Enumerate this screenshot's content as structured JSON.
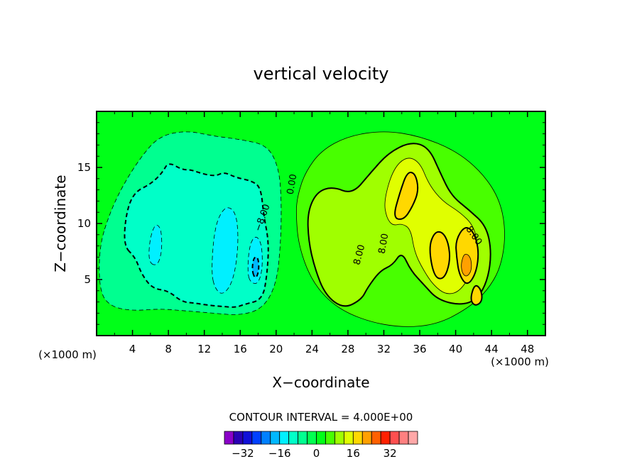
{
  "chart_data": {
    "type": "heatmap",
    "title": "vertical velocity",
    "xlabel": "X−coordinate",
    "ylabel": "Z−coordinate",
    "x_unit": "(×1000 m)",
    "y_unit": "(×1000 m)",
    "xlim": [
      0,
      50
    ],
    "ylim": [
      0,
      20
    ],
    "x_ticks": [
      4,
      8,
      12,
      16,
      20,
      24,
      28,
      32,
      36,
      40,
      44,
      48
    ],
    "y_ticks": [
      5,
      10,
      15
    ],
    "contour_interval_text": "CONTOUR INTERVAL = 4.000E+00",
    "contour_labels": [
      {
        "text": "0.00",
        "x": 21.8,
        "y": 13.5,
        "angle": -80
      },
      {
        "text": "−8.00",
        "x": 18.5,
        "y": 10.5,
        "angle": -70
      },
      {
        "text": "8.00",
        "x": 29.3,
        "y": 7.2,
        "angle": -75
      },
      {
        "text": "8.00",
        "x": 32.0,
        "y": 8.2,
        "angle": -80
      },
      {
        "text": "8.00",
        "x": 42.0,
        "y": 8.9,
        "angle": 55
      }
    ],
    "colorbar": {
      "levels": [
        -36,
        -32,
        -28,
        -24,
        -20,
        -16,
        -12,
        -8,
        -4,
        0,
        4,
        8,
        12,
        16,
        20,
        24,
        28,
        32,
        36
      ],
      "colors": [
        "#8a00c8",
        "#2a00b4",
        "#1010d8",
        "#0040ff",
        "#0080ff",
        "#00b8ff",
        "#00f0ff",
        "#00ffc8",
        "#00ff90",
        "#00ff50",
        "#00ff18",
        "#48ff00",
        "#a0ff00",
        "#e0ff00",
        "#ffd800",
        "#ffa000",
        "#ff6000",
        "#ff2000",
        "#ff5050",
        "#ff8080",
        "#ffa8a8"
      ],
      "tick_values": [
        -32,
        -16,
        0,
        16,
        32
      ],
      "tick_labels": [
        "−32",
        "−16",
        "0",
        "16",
        "32"
      ]
    },
    "field": {
      "background_level_color": "#00ff18",
      "features": [
        {
          "name": "updraft-region",
          "level": 4,
          "points": [
            [
              22.4,
              12.5
            ],
            [
              23.2,
              14.5
            ],
            [
              25,
              16.5
            ],
            [
              28,
              17.8
            ],
            [
              32,
              18.3
            ],
            [
              36,
              17.8
            ],
            [
              40,
              16.5
            ],
            [
              43,
              14.5
            ],
            [
              45,
              12
            ],
            [
              45.6,
              9
            ],
            [
              45,
              6
            ],
            [
              43.5,
              4
            ],
            [
              41.5,
              2.5
            ],
            [
              38,
              1
            ],
            [
              34,
              0.7
            ],
            [
              30,
              1.3
            ],
            [
              26.5,
              2.6
            ],
            [
              24,
              4.8
            ],
            [
              22.5,
              8
            ],
            [
              22.2,
              11
            ]
          ]
        },
        {
          "name": "updraft-8",
          "level": 8,
          "points": [
            [
              23.5,
              11
            ],
            [
              24.5,
              12.8
            ],
            [
              26.3,
              13.3
            ],
            [
              28.5,
              12.6
            ],
            [
              30.5,
              14.5
            ],
            [
              32.5,
              16.3
            ],
            [
              35,
              17.3
            ],
            [
              37,
              16.8
            ],
            [
              38.3,
              14.5
            ],
            [
              39.5,
              12.5
            ],
            [
              41.5,
              11.2
            ],
            [
              43.4,
              9.8
            ],
            [
              44,
              7.5
            ],
            [
              43.6,
              5
            ],
            [
              42.4,
              3.2
            ],
            [
              40.5,
              2.7
            ],
            [
              38,
              3.2
            ],
            [
              36.5,
              4.5
            ],
            [
              35,
              5.8
            ],
            [
              34,
              7.5
            ],
            [
              33,
              6.3
            ],
            [
              31.6,
              5.8
            ],
            [
              30.2,
              4.3
            ],
            [
              29.5,
              3.2
            ],
            [
              27.5,
              2.4
            ],
            [
              25.5,
              3.6
            ],
            [
              24.3,
              6
            ],
            [
              23.6,
              8.5
            ]
          ]
        },
        {
          "name": "updraft-12",
          "level": 12,
          "points": [
            [
              32,
              12
            ],
            [
              33,
              14.8
            ],
            [
              34.5,
              16
            ],
            [
              36,
              15.5
            ],
            [
              37,
              13.5
            ],
            [
              38.5,
              12
            ],
            [
              40.5,
              11
            ],
            [
              42,
              9.8
            ],
            [
              42.5,
              8
            ],
            [
              42,
              6
            ],
            [
              40.6,
              4
            ],
            [
              39,
              3.6
            ],
            [
              37.5,
              4.5
            ],
            [
              36.3,
              6
            ],
            [
              35.4,
              7.5
            ],
            [
              35,
              9.5
            ],
            [
              34,
              10
            ],
            [
              33,
              9.8
            ],
            [
              32.3,
              10.5
            ]
          ]
        },
        {
          "name": "updraft-16a",
          "level": 16,
          "points": [
            [
              33,
              10.5
            ],
            [
              33.8,
              12.8
            ],
            [
              34.6,
              14.6
            ],
            [
              35.5,
              14.5
            ],
            [
              35.9,
              13
            ],
            [
              35.2,
              11.5
            ],
            [
              34.2,
              10.3
            ]
          ]
        },
        {
          "name": "updraft-16b",
          "level": 16,
          "points": [
            [
              37,
              7.8
            ],
            [
              37.6,
              9.2
            ],
            [
              38.5,
              9.3
            ],
            [
              39.2,
              8.3
            ],
            [
              39.4,
              6.6
            ],
            [
              38.7,
              5
            ],
            [
              37.6,
              5.2
            ]
          ]
        },
        {
          "name": "updraft-16c",
          "level": 16,
          "points": [
            [
              40,
              8.5
            ],
            [
              41,
              9.8
            ],
            [
              42,
              9.3
            ],
            [
              42.6,
              7.6
            ],
            [
              42.3,
              5.6
            ],
            [
              41.3,
              4.4
            ],
            [
              40.4,
              5.4
            ],
            [
              40.1,
              7
            ]
          ]
        },
        {
          "name": "updraft-16d",
          "level": 16,
          "points": [
            [
              41.6,
              3.2
            ],
            [
              42.1,
              4.6
            ],
            [
              42.8,
              4.2
            ],
            [
              43,
              3.1
            ],
            [
              42.2,
              2.6
            ]
          ]
        },
        {
          "name": "updraft-20",
          "level": 20,
          "points": [
            [
              40.6,
              6.5
            ],
            [
              41,
              7.4
            ],
            [
              41.7,
              7
            ],
            [
              41.8,
              5.8
            ],
            [
              41.2,
              5.2
            ],
            [
              40.7,
              5.6
            ]
          ]
        },
        {
          "name": "downdraft-region",
          "level": -4,
          "points": [
            [
              1.5,
              11
            ],
            [
              3,
              13.5
            ],
            [
              5,
              16
            ],
            [
              7,
              17.8
            ],
            [
              10,
              18.3
            ],
            [
              13,
              17.8
            ],
            [
              16,
              17.5
            ],
            [
              19,
              17
            ],
            [
              20.3,
              15
            ],
            [
              20.6,
              12
            ],
            [
              20.5,
              8
            ],
            [
              20,
              4.5
            ],
            [
              18.5,
              2.4
            ],
            [
              16,
              1.8
            ],
            [
              13,
              2
            ],
            [
              10,
              2.2
            ],
            [
              7,
              2.4
            ],
            [
              4,
              2.2
            ],
            [
              1.5,
              2.6
            ],
            [
              0.3,
              4
            ],
            [
              0.3,
              8
            ]
          ]
        },
        {
          "name": "downdraft-8",
          "level": -8,
          "points": [
            [
              3,
              8
            ],
            [
              3.3,
              11
            ],
            [
              4.2,
              12.8
            ],
            [
              6,
              13.5
            ],
            [
              7.3,
              14.5
            ],
            [
              8,
              15.5
            ],
            [
              9.5,
              14.8
            ],
            [
              10.5,
              14.8
            ],
            [
              11.5,
              14.5
            ],
            [
              13.2,
              14.2
            ],
            [
              14.2,
              14.6
            ],
            [
              15.5,
              14.1
            ],
            [
              17.3,
              13.8
            ],
            [
              18.3,
              13.2
            ],
            [
              18.6,
              10.8
            ],
            [
              19.2,
              8.3
            ],
            [
              19,
              5.5
            ],
            [
              18.5,
              3.2
            ],
            [
              16.5,
              2.8
            ],
            [
              15.5,
              2.5
            ],
            [
              14,
              2.6
            ],
            [
              12.5,
              2.7
            ],
            [
              11,
              2.9
            ],
            [
              9.5,
              3
            ],
            [
              8,
              4
            ],
            [
              6.2,
              4.2
            ],
            [
              5,
              5.5
            ],
            [
              4.3,
              7
            ]
          ]
        },
        {
          "name": "downdraft-12a",
          "level": -12,
          "points": [
            [
              5.8,
              6.5
            ],
            [
              5.9,
              8.5
            ],
            [
              6.5,
              10
            ],
            [
              7.2,
              9.6
            ],
            [
              7.3,
              7.6
            ],
            [
              6.8,
              6.2
            ]
          ]
        },
        {
          "name": "downdraft-12b",
          "level": -12,
          "points": [
            [
              12.8,
              5.5
            ],
            [
              13,
              8.5
            ],
            [
              13.5,
              10.5
            ],
            [
              14.5,
              11.6
            ],
            [
              15.5,
              11
            ],
            [
              15.8,
              9
            ],
            [
              15.6,
              6.5
            ],
            [
              15,
              4.5
            ],
            [
              14,
              3.6
            ],
            [
              13.2,
              4.2
            ]
          ]
        },
        {
          "name": "downdraft-12c",
          "level": -12,
          "points": [
            [
              16.8,
              5.5
            ],
            [
              17,
              8
            ],
            [
              17.7,
              9
            ],
            [
              18.4,
              8.2
            ],
            [
              18.5,
              6
            ],
            [
              18,
              4.6
            ],
            [
              17.2,
              4.7
            ]
          ]
        },
        {
          "name": "downdraft-16",
          "level": -16,
          "points": [
            [
              17.3,
              5.8
            ],
            [
              17.5,
              7
            ],
            [
              18,
              7
            ],
            [
              18.1,
              5.8
            ],
            [
              17.7,
              5
            ]
          ]
        }
      ]
    }
  }
}
